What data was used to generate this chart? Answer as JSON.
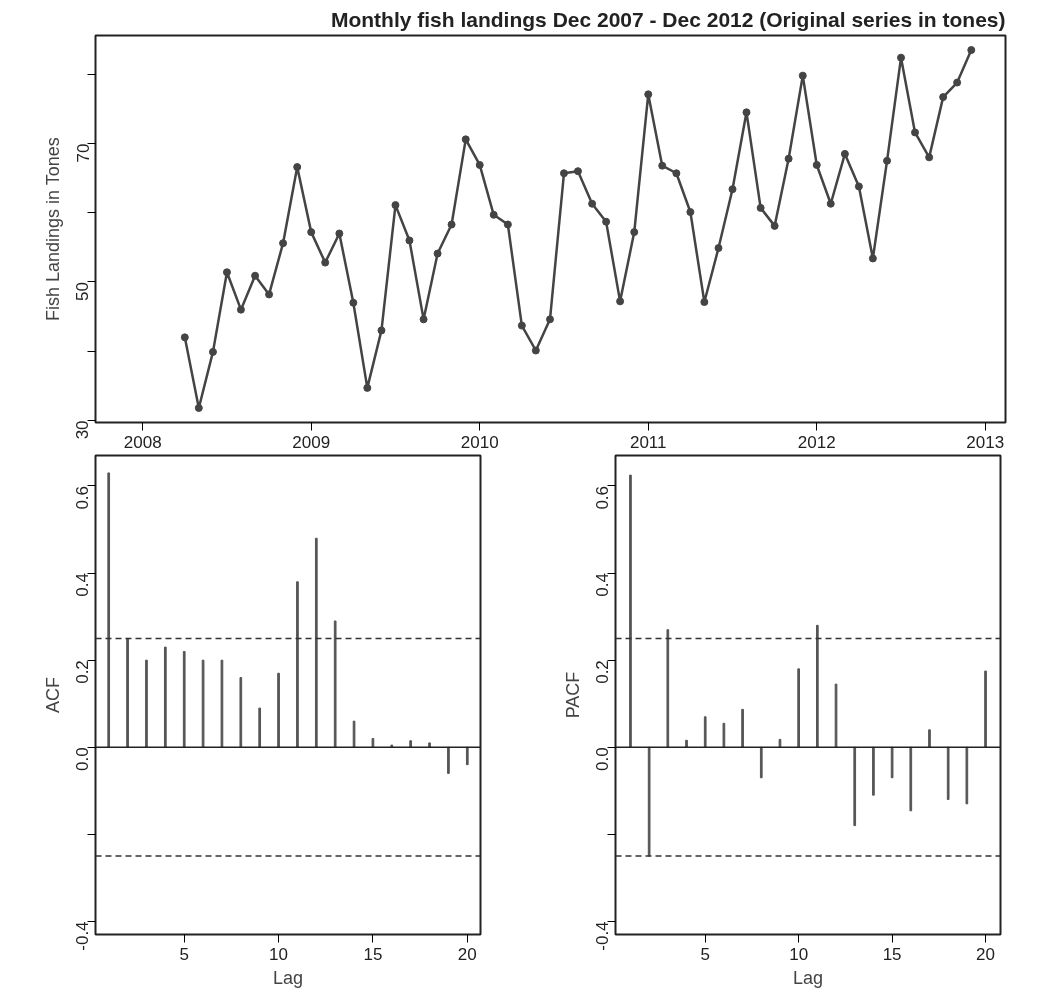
{
  "chart_data": [
    {
      "type": "line",
      "title": "Monthly fish landings Dec 2007 - Dec 2012 (Original series in tones)",
      "ylabel": "Fish Landings in Tones",
      "x": [
        2008.25,
        2008.333,
        2008.417,
        2008.5,
        2008.583,
        2008.667,
        2008.75,
        2008.833,
        2008.917,
        2009.0,
        2009.083,
        2009.167,
        2009.25,
        2009.333,
        2009.417,
        2009.5,
        2009.583,
        2009.667,
        2009.75,
        2009.833,
        2009.917,
        2010.0,
        2010.083,
        2010.167,
        2010.25,
        2010.333,
        2010.417,
        2010.5,
        2010.583,
        2010.667,
        2010.75,
        2010.833,
        2010.917,
        2011.0,
        2011.083,
        2011.167,
        2011.25,
        2011.333,
        2011.417,
        2011.5,
        2011.583,
        2011.667,
        2011.75,
        2011.833,
        2011.917,
        2012.0,
        2012.083,
        2012.167,
        2012.25,
        2012.333,
        2012.417,
        2012.5,
        2012.583,
        2012.667,
        2012.75,
        2012.833,
        2012.917
      ],
      "series": [
        {
          "color": "#444444",
          "values": [
            42.0,
            31.8,
            39.9,
            51.4,
            46.0,
            50.9,
            48.2,
            55.6,
            66.6,
            57.2,
            52.8,
            57.0,
            47.0,
            34.7,
            43.0,
            61.1,
            56.0,
            44.6,
            54.1,
            58.3,
            70.6,
            66.9,
            59.7,
            58.3,
            43.7,
            40.1,
            44.6,
            65.7,
            66.0,
            61.3,
            58.7,
            47.2,
            57.2,
            77.1,
            66.8,
            65.7,
            60.1,
            47.1,
            54.9,
            63.4,
            74.5,
            60.7,
            58.1,
            67.8,
            79.8,
            66.9,
            61.3,
            68.5,
            63.8,
            53.4,
            67.5,
            82.4,
            71.6,
            68.0,
            76.7,
            78.8,
            83.5
          ]
        }
      ],
      "xlim": [
        2007.72,
        2013.12
      ],
      "xticks": [
        2008,
        2009,
        2010,
        2011,
        2012,
        2013
      ],
      "ylim": [
        29.7,
        85.6
      ],
      "yticks": [
        30,
        {
          "value": 40,
          "label": null
        },
        50,
        {
          "value": 60,
          "label": null
        },
        70,
        {
          "value": 80,
          "label": null
        }
      ],
      "marker": "circle",
      "line_style": "solid",
      "grid": false
    },
    {
      "type": "bar",
      "xlabel": "Lag",
      "ylabel": "ACF",
      "x": [
        1,
        2,
        3,
        4,
        5,
        6,
        7,
        8,
        9,
        10,
        11,
        12,
        13,
        14,
        15,
        16,
        17,
        18,
        19,
        20
      ],
      "series": [
        {
          "color": "#555555",
          "values": [
            0.63,
            0.25,
            0.2,
            0.23,
            0.22,
            0.2,
            0.2,
            0.16,
            0.09,
            0.17,
            0.38,
            0.48,
            0.29,
            0.06,
            0.02,
            0.005,
            0.015,
            0.01,
            -0.06,
            -0.04
          ]
        }
      ],
      "xlim": [
        0.3,
        20.7
      ],
      "xticks": [
        5,
        10,
        15,
        20
      ],
      "ylim": [
        -0.43,
        0.67
      ],
      "yticks": [
        {
          "value": -0.4,
          "label": "-0.4"
        },
        {
          "value": -0.2,
          "label": null
        },
        {
          "value": 0.0,
          "label": "0.0"
        },
        {
          "value": 0.2,
          "label": "0.2"
        },
        {
          "value": 0.4,
          "label": "0.4"
        },
        {
          "value": 0.6,
          "label": "0.6"
        }
      ],
      "ref_lines": [
        {
          "axis": "y",
          "value": 0.25,
          "line_style": "dashed",
          "color": "#333333"
        },
        {
          "axis": "y",
          "value": -0.25,
          "line_style": "dashed",
          "color": "#333333"
        },
        {
          "axis": "y",
          "value": 0,
          "line_style": "solid",
          "color": "#222222"
        }
      ],
      "grid": false
    },
    {
      "type": "bar",
      "xlabel": "Lag",
      "ylabel": "PACF",
      "x": [
        1,
        2,
        3,
        4,
        5,
        6,
        7,
        8,
        9,
        10,
        11,
        12,
        13,
        14,
        15,
        16,
        17,
        18,
        19,
        20
      ],
      "series": [
        {
          "color": "#555555",
          "values": [
            0.625,
            -0.25,
            0.27,
            0.016,
            0.07,
            0.055,
            0.087,
            -0.07,
            0.018,
            0.18,
            0.28,
            0.145,
            -0.18,
            -0.11,
            -0.07,
            -0.146,
            0.04,
            -0.12,
            -0.13,
            0.175
          ]
        }
      ],
      "xlim": [
        0.2,
        20.8
      ],
      "xticks": [
        5,
        10,
        15,
        20
      ],
      "ylim": [
        -0.43,
        0.67
      ],
      "yticks": [
        {
          "value": -0.4,
          "label": "-0.4"
        },
        {
          "value": -0.2,
          "label": null
        },
        {
          "value": 0.0,
          "label": "0.0"
        },
        {
          "value": 0.2,
          "label": "0.2"
        },
        {
          "value": 0.4,
          "label": "0.4"
        },
        {
          "value": 0.6,
          "label": "0.6"
        }
      ],
      "ref_lines": [
        {
          "axis": "y",
          "value": 0.25,
          "line_style": "dashed",
          "color": "#333333"
        },
        {
          "axis": "y",
          "value": -0.25,
          "line_style": "dashed",
          "color": "#333333"
        },
        {
          "axis": "y",
          "value": 0,
          "line_style": "solid",
          "color": "#222222"
        }
      ],
      "grid": false
    }
  ]
}
